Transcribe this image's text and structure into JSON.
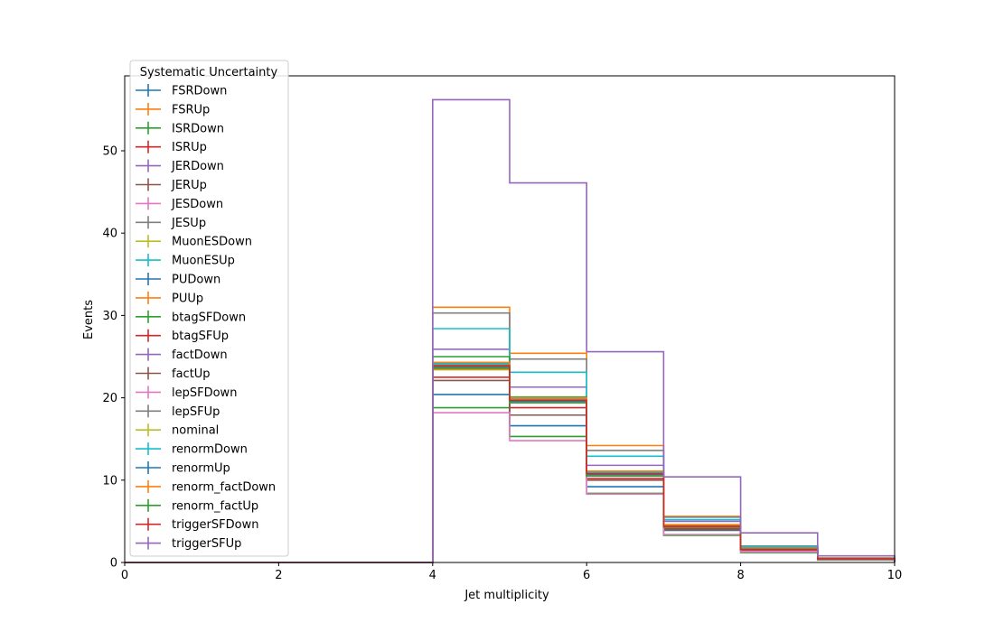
{
  "chart_data": {
    "type": "histogram",
    "xlabel": "Jet multiplicity",
    "ylabel": "Events",
    "xlim": [
      0,
      10
    ],
    "ylim": [
      0,
      59.1
    ],
    "x_ticks": [
      "0",
      "2",
      "4",
      "6",
      "8",
      "10"
    ],
    "y_ticks": [
      "0",
      "10",
      "20",
      "30",
      "40",
      "50"
    ],
    "grid": false,
    "legend": {
      "title": "Systematic Uncertainty",
      "placement": "upper-left"
    },
    "bin_edges": [
      0,
      1,
      2,
      3,
      4,
      5,
      6,
      7,
      8,
      9,
      10
    ],
    "series": [
      {
        "name": "FSRDown",
        "color": "#1f77b4",
        "values": [
          0,
          0,
          0,
          0,
          20.4,
          16.6,
          9.2,
          3.9,
          1.5,
          0.45
        ]
      },
      {
        "name": "FSRUp",
        "color": "#ff7f0e",
        "values": [
          0,
          0,
          0,
          0,
          31.0,
          25.4,
          14.2,
          5.6,
          2.0,
          0.5
        ]
      },
      {
        "name": "ISRDown",
        "color": "#2ca02c",
        "values": [
          0,
          0,
          0,
          0,
          18.8,
          15.3,
          8.4,
          3.3,
          1.2,
          0.3
        ]
      },
      {
        "name": "ISRUp",
        "color": "#d62728",
        "values": [
          0,
          0,
          0,
          0,
          22.5,
          18.8,
          10.2,
          4.1,
          1.5,
          0.4
        ]
      },
      {
        "name": "JERDown",
        "color": "#9467bd",
        "values": [
          0,
          0,
          0,
          0,
          25.9,
          21.3,
          11.8,
          5.0,
          1.8,
          0.5
        ]
      },
      {
        "name": "JERUp",
        "color": "#8c564b",
        "values": [
          0,
          0,
          0,
          0,
          22.1,
          17.9,
          10.0,
          4.0,
          1.5,
          0.4
        ]
      },
      {
        "name": "JESDown",
        "color": "#e377c2",
        "values": [
          0,
          0,
          0,
          0,
          18.2,
          14.8,
          8.3,
          3.4,
          1.3,
          0.35
        ]
      },
      {
        "name": "JESUp",
        "color": "#7f7f7f",
        "values": [
          0,
          0,
          0,
          0,
          30.3,
          24.7,
          13.6,
          5.5,
          2.0,
          0.55
        ]
      },
      {
        "name": "MuonESDown",
        "color": "#bcbd22",
        "values": [
          0,
          0,
          0,
          0,
          23.4,
          19.4,
          10.7,
          4.3,
          1.6,
          0.45
        ]
      },
      {
        "name": "MuonESUp",
        "color": "#17becf",
        "values": [
          0,
          0,
          0,
          0,
          28.4,
          23.1,
          12.9,
          5.2,
          1.9,
          0.5
        ]
      },
      {
        "name": "PUDown",
        "color": "#1f77b4",
        "values": [
          0,
          0,
          0,
          0,
          24.0,
          19.9,
          10.9,
          4.4,
          1.7,
          0.45
        ]
      },
      {
        "name": "PUUp",
        "color": "#ff7f0e",
        "values": [
          0,
          0,
          0,
          0,
          23.5,
          19.5,
          10.6,
          4.3,
          1.6,
          0.45
        ]
      },
      {
        "name": "btagSFDown",
        "color": "#2ca02c",
        "values": [
          0,
          0,
          0,
          0,
          25.0,
          20.1,
          11.0,
          4.5,
          1.7,
          0.45
        ]
      },
      {
        "name": "btagSFUp",
        "color": "#d62728",
        "values": [
          0,
          0,
          0,
          0,
          24.2,
          19.6,
          10.6,
          4.3,
          1.6,
          0.45
        ]
      },
      {
        "name": "factDown",
        "color": "#9467bd",
        "values": [
          0,
          0,
          0,
          0,
          24.1,
          19.9,
          11.0,
          4.5,
          1.7,
          0.45
        ]
      },
      {
        "name": "factUp",
        "color": "#8c564b",
        "values": [
          0,
          0,
          0,
          0,
          23.9,
          19.7,
          10.8,
          4.4,
          1.6,
          0.45
        ]
      },
      {
        "name": "lepSFDown",
        "color": "#e377c2",
        "values": [
          0,
          0,
          0,
          0,
          23.7,
          19.5,
          10.6,
          4.3,
          1.6,
          0.45
        ]
      },
      {
        "name": "lepSFUp",
        "color": "#7f7f7f",
        "values": [
          0,
          0,
          0,
          0,
          24.2,
          20.0,
          11.0,
          4.5,
          1.7,
          0.45
        ]
      },
      {
        "name": "nominal",
        "color": "#bcbd22",
        "values": [
          0,
          0,
          0,
          0,
          24.0,
          19.8,
          10.8,
          4.4,
          1.6,
          0.45
        ]
      },
      {
        "name": "renormDown",
        "color": "#17becf",
        "values": [
          0,
          0,
          0,
          0,
          24.1,
          19.9,
          10.9,
          4.5,
          1.7,
          0.45
        ]
      },
      {
        "name": "renormUp",
        "color": "#1f77b4",
        "values": [
          0,
          0,
          0,
          0,
          23.8,
          19.6,
          10.7,
          4.4,
          1.6,
          0.45
        ]
      },
      {
        "name": "renorm_factDown",
        "color": "#ff7f0e",
        "values": [
          0,
          0,
          0,
          0,
          24.3,
          20.0,
          11.1,
          4.6,
          1.7,
          0.5
        ]
      },
      {
        "name": "renorm_factUp",
        "color": "#2ca02c",
        "values": [
          0,
          0,
          0,
          0,
          23.6,
          19.4,
          10.5,
          4.3,
          1.6,
          0.45
        ]
      },
      {
        "name": "triggerSFDown",
        "color": "#d62728",
        "values": [
          0,
          0,
          0,
          0,
          23.9,
          19.7,
          10.8,
          4.4,
          1.6,
          0.45
        ]
      },
      {
        "name": "triggerSFUp",
        "color": "#9467bd",
        "values": [
          0,
          0,
          0,
          0,
          56.2,
          46.1,
          25.6,
          10.4,
          3.6,
          0.8
        ]
      }
    ]
  }
}
